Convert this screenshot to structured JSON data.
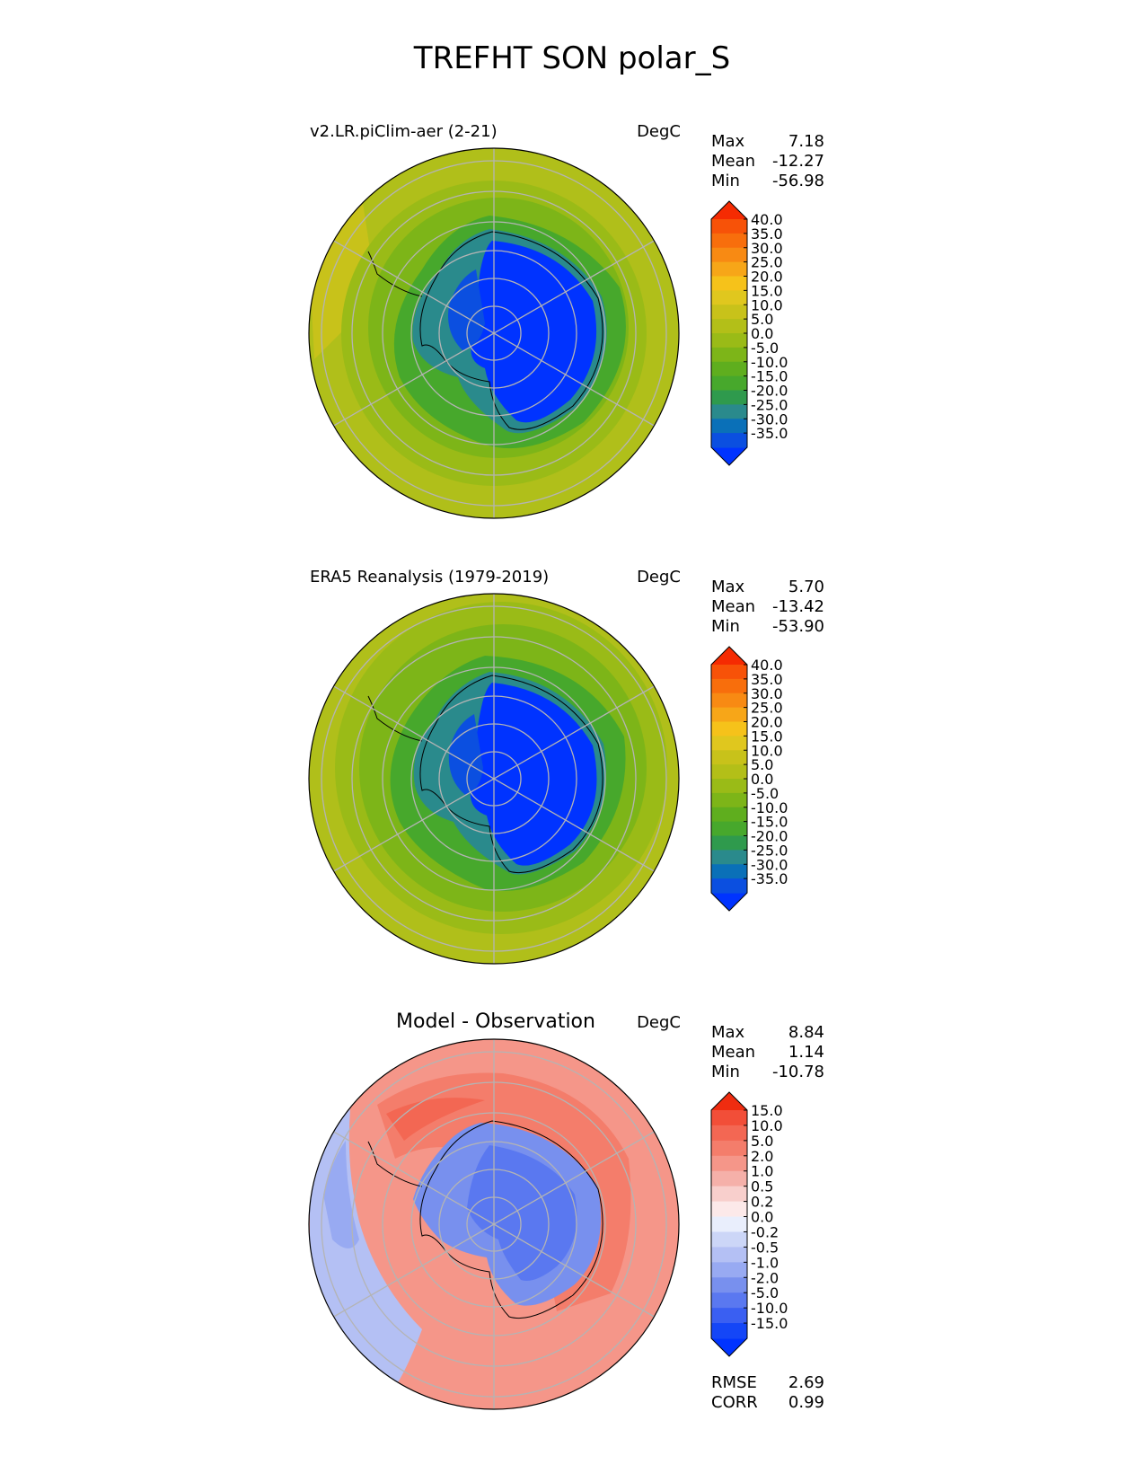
{
  "figure": {
    "title": "TREFHT SON polar_S"
  },
  "colors": {
    "abs": [
      "#0033ff",
      "#0b4fe0",
      "#0a70b8",
      "#2a8a8c",
      "#2f9a4d",
      "#47a82c",
      "#5fae1e",
      "#7db518",
      "#9abb17",
      "#b3bf18",
      "#c8c21a",
      "#e0c71e",
      "#f6c21a",
      "#f7a618",
      "#f88a13",
      "#f86e0c",
      "#f75208",
      "#f52b02"
    ],
    "diff": [
      "#0033ff",
      "#1446f7",
      "#3a5ff2",
      "#5a78f0",
      "#7890ee",
      "#98aaf2",
      "#b4c0f4",
      "#ccd6f7",
      "#e9eefc",
      "#fce9e9",
      "#f8cfcc",
      "#f5b0a9",
      "#f59689",
      "#f47d6b",
      "#f36753",
      "#f24e38",
      "#ef2c10"
    ]
  },
  "stat_labels": {
    "max": "Max",
    "mean": "Mean",
    "min": "Min",
    "rmse": "RMSE",
    "corr": "CORR"
  },
  "panels": [
    {
      "title": "v2.LR.piClim-aer (2-21)",
      "units": "DegC",
      "stats": {
        "max": "7.18",
        "mean": "-12.27",
        "min": "-56.98"
      }
    },
    {
      "title": "ERA5 Reanalysis (1979-2019)",
      "units": "DegC",
      "stats": {
        "max": "5.70",
        "mean": "-13.42",
        "min": "-53.90"
      }
    },
    {
      "title": "Model - Observation",
      "units": "DegC",
      "stats": {
        "max": "8.84",
        "mean": "1.14",
        "min": "-10.78"
      },
      "metrics": {
        "rmse": "2.69",
        "corr": "0.99"
      }
    }
  ],
  "chart_data": [
    {
      "type": "heatmap",
      "title": "v2.LR.piClim-aer (2-21)",
      "units": "DegC",
      "projection": "south polar stereographic",
      "colorbar_levels": [
        "40.0",
        "35.0",
        "30.0",
        "25.0",
        "20.0",
        "15.0",
        "10.0",
        "5.0",
        "0.0",
        "-5.0",
        "-10.0",
        "-15.0",
        "-20.0",
        "-25.0",
        "-30.0",
        "-35.0"
      ],
      "max": 7.18,
      "mean": -12.27,
      "min": -56.98
    },
    {
      "type": "heatmap",
      "title": "ERA5 Reanalysis (1979-2019)",
      "units": "DegC",
      "projection": "south polar stereographic",
      "colorbar_levels": [
        "40.0",
        "35.0",
        "30.0",
        "25.0",
        "20.0",
        "15.0",
        "10.0",
        "5.0",
        "0.0",
        "-5.0",
        "-10.0",
        "-15.0",
        "-20.0",
        "-25.0",
        "-30.0",
        "-35.0"
      ],
      "max": 5.7,
      "mean": -13.42,
      "min": -53.9
    },
    {
      "type": "heatmap",
      "title": "Model - Observation",
      "units": "DegC",
      "projection": "south polar stereographic",
      "colorbar_levels": [
        "15.0",
        "10.0",
        "5.0",
        "2.0",
        "1.0",
        "0.5",
        "0.2",
        "0.0",
        "-0.2",
        "-0.5",
        "-1.0",
        "-2.0",
        "-5.0",
        "-10.0",
        "-15.0"
      ],
      "max": 8.84,
      "mean": 1.14,
      "min": -10.78,
      "rmse": 2.69,
      "corr": 0.99
    }
  ]
}
